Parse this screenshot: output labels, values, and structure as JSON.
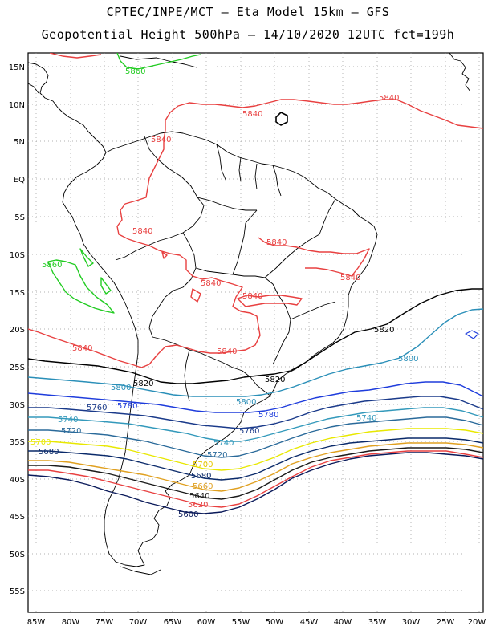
{
  "title_line1": "CPTEC/INPE/MCT –  Eta Model 15km – GFS",
  "title_line2": "Geopotential Height 500hPa – 14/10/2020 12UTC fct=199h",
  "lat_labels": [
    "15N",
    "10N",
    "5N",
    "EQ",
    "5S",
    "10S",
    "15S",
    "20S",
    "25S",
    "30S",
    "35S",
    "40S",
    "45S",
    "50S",
    "55S"
  ],
  "lon_labels": [
    "85W",
    "80W",
    "75W",
    "70W",
    "65W",
    "60W",
    "55W",
    "50W",
    "45W",
    "40W",
    "35W",
    "30W",
    "25W",
    "20W"
  ],
  "contour_labels": {
    "c5860_a": "5860",
    "c5860_b": "5860",
    "c5840_a": "5840",
    "c5840_b": "5840",
    "c5840_c": "5840",
    "c5840_d": "5840",
    "c5840_e": "5840",
    "c5840_f": "5840",
    "c5840_g": "5840",
    "c5840_h": "5840",
    "c5840_i": "5840",
    "c5840_j": "5840",
    "c5840_k": "5840",
    "c5820_a": "5820",
    "c5820_b": "5820",
    "c5820_c": "5820",
    "c5800_a": "5800",
    "c5800_b": "5800",
    "c5800_c": "5800",
    "c5780_a": "5780",
    "c5780_b": "5780",
    "c5780_c": "5780",
    "c5760_a": "5760",
    "c5760_b": "5760",
    "c5740_a": "5740",
    "c5740_b": "5740",
    "c5740_c": "5740",
    "c5720_a": "5720",
    "c5720_b": "5720",
    "c5700_a": "5700",
    "c5700_b": "5700",
    "c5680_a": "5680",
    "c5680_b": "5680",
    "c5660": "5660",
    "c5640": "5640",
    "c5620": "5620",
    "c5600": "5600"
  },
  "colors": {
    "c5860": "#22cc22",
    "c5840": "#e84040",
    "c5820": "#000000",
    "c5800": "#2a8fb8",
    "c5780": "#1e3cdc",
    "c5760": "#1a3a8a",
    "c5740": "#3399bb",
    "c5720": "#2a6a9a",
    "c5700": "#e8e800",
    "c5680": "#0a2a6a",
    "c5660": "#e0a020",
    "c5640": "#1a1a1a",
    "c5620": "#e84040",
    "c5600": "#0a1a5a",
    "coast": "#000000",
    "grid": "#999999"
  }
}
